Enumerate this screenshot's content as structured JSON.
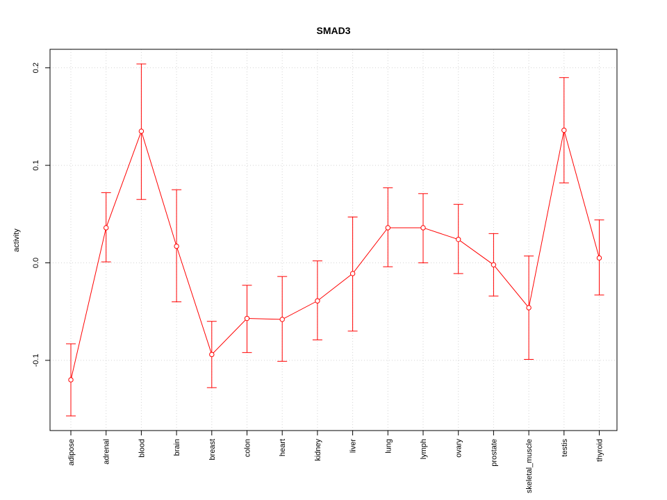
{
  "chart_data": {
    "type": "line",
    "title": "SMAD3",
    "xlabel": "",
    "ylabel": "activity",
    "categories": [
      "adipose",
      "adrenal",
      "blood",
      "brain",
      "breast",
      "colon",
      "heart",
      "kidney",
      "liver",
      "lung",
      "lymph",
      "ovary",
      "prostate",
      "skeletal_muscle",
      "testis",
      "thyroid"
    ],
    "series": [
      {
        "values": [
          -0.12,
          0.036,
          0.135,
          0.017,
          -0.094,
          -0.057,
          -0.058,
          -0.039,
          -0.011,
          0.036,
          0.036,
          0.024,
          -0.002,
          -0.046,
          0.136,
          0.005
        ],
        "upper": [
          -0.083,
          0.072,
          0.204,
          0.075,
          -0.06,
          -0.023,
          -0.014,
          0.002,
          0.047,
          0.077,
          0.071,
          0.06,
          0.03,
          0.007,
          0.19,
          0.044
        ],
        "lower": [
          -0.157,
          0.001,
          0.065,
          -0.04,
          -0.128,
          -0.092,
          -0.101,
          -0.079,
          -0.07,
          -0.004,
          0.0,
          -0.011,
          -0.034,
          -0.099,
          0.082,
          -0.033
        ]
      }
    ],
    "yticks": [
      -0.1,
      0.0,
      0.1,
      0.2
    ],
    "ytick_labels": [
      "-0.1",
      "0.0",
      "0.1",
      "0.2"
    ],
    "ylim": [
      -0.172,
      0.219
    ],
    "grid": true,
    "colors": {
      "series": "#ff0000",
      "grid": "#d3d3d3",
      "axis": "#000000"
    }
  }
}
